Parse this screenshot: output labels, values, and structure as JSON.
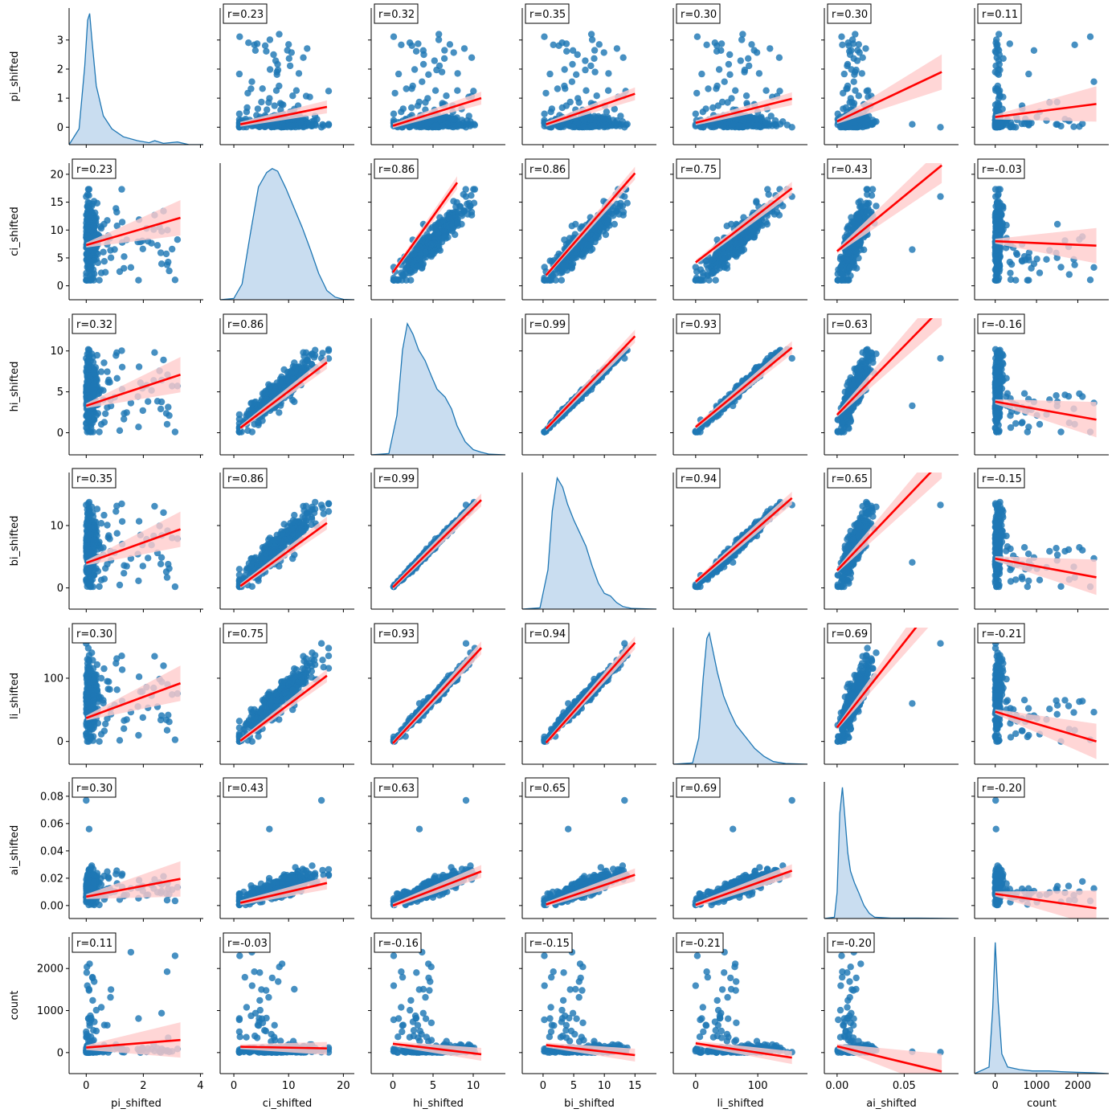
{
  "chart_data": {
    "type": "pairplot",
    "variables": [
      "pi_shifted",
      "ci_shifted",
      "hi_shifted",
      "bi_shifted",
      "li_shifted",
      "ai_shifted",
      "count"
    ],
    "axes": {
      "pi_shifted": {
        "lim": [
          -0.6,
          4.1
        ],
        "ticks": [
          0,
          1,
          2,
          3
        ],
        "xticks": [
          0,
          2,
          4
        ]
      },
      "ci_shifted": {
        "lim": [
          -2.5,
          22.0
        ],
        "ticks": [
          0,
          5,
          10,
          15,
          20,
          25
        ],
        "xticks": [
          0,
          10,
          20
        ]
      },
      "hi_shifted": {
        "lim": [
          -2.7,
          14.0
        ],
        "ticks": [
          0,
          5,
          10,
          15,
          20
        ],
        "xticks": [
          0,
          5,
          10
        ]
      },
      "bi_shifted": {
        "lim": [
          -3.4,
          18.5
        ],
        "ticks": [
          0,
          10,
          20
        ],
        "xticks": [
          0,
          5,
          10,
          15
        ]
      },
      "li_shifted": {
        "lim": [
          -36,
          180
        ],
        "ticks": [
          0,
          100,
          200,
          300
        ],
        "xticks": [
          0,
          100
        ]
      },
      "ai_shifted": {
        "lim": [
          -0.0095,
          0.0905
        ],
        "ticks": [
          0.0,
          0.02,
          0.04,
          0.06,
          0.08
        ],
        "xticks": [
          0.0,
          0.05
        ]
      },
      "count": {
        "lim": [
          -500,
          2750
        ],
        "ticks": [
          -1000,
          0,
          1000,
          2000
        ],
        "xticks": [
          0,
          1000,
          2000
        ]
      }
    },
    "diagonal_kde": {
      "pi_shifted": [
        [
          -0.6,
          0
        ],
        [
          -0.25,
          0.12
        ],
        [
          -0.05,
          0.6
        ],
        [
          0.05,
          0.95
        ],
        [
          0.12,
          1.0
        ],
        [
          0.2,
          0.8
        ],
        [
          0.35,
          0.45
        ],
        [
          0.6,
          0.22
        ],
        [
          0.9,
          0.12
        ],
        [
          1.3,
          0.06
        ],
        [
          1.8,
          0.03
        ],
        [
          2.2,
          0.015
        ],
        [
          2.4,
          0.03
        ],
        [
          2.7,
          0.01
        ],
        [
          3.2,
          0.02
        ],
        [
          3.6,
          0.0
        ],
        [
          4.1,
          0
        ]
      ],
      "ci_shifted": [
        [
          -2.5,
          0
        ],
        [
          0,
          0.01
        ],
        [
          1.5,
          0.12
        ],
        [
          3,
          0.5
        ],
        [
          4.5,
          0.86
        ],
        [
          6,
          0.97
        ],
        [
          7,
          1.0
        ],
        [
          8,
          0.98
        ],
        [
          9.5,
          0.85
        ],
        [
          11,
          0.7
        ],
        [
          12.5,
          0.55
        ],
        [
          14,
          0.38
        ],
        [
          15.5,
          0.2
        ],
        [
          17,
          0.07
        ],
        [
          18.5,
          0.02
        ],
        [
          20,
          0.003
        ],
        [
          22,
          0
        ]
      ],
      "hi_shifted": [
        [
          -2.7,
          0
        ],
        [
          -0.5,
          0.01
        ],
        [
          0.5,
          0.3
        ],
        [
          1.2,
          0.8
        ],
        [
          1.8,
          1.0
        ],
        [
          2.5,
          0.92
        ],
        [
          3.2,
          0.8
        ],
        [
          4,
          0.72
        ],
        [
          4.8,
          0.6
        ],
        [
          5.5,
          0.5
        ],
        [
          6.5,
          0.44
        ],
        [
          7.3,
          0.35
        ],
        [
          8,
          0.22
        ],
        [
          9,
          0.1
        ],
        [
          10,
          0.04
        ],
        [
          11,
          0.02
        ],
        [
          12,
          0.005
        ],
        [
          14,
          0
        ]
      ],
      "bi_shifted": [
        [
          -3.4,
          0
        ],
        [
          -0.5,
          0.01
        ],
        [
          0.8,
          0.3
        ],
        [
          1.5,
          0.75
        ],
        [
          2.3,
          1.0
        ],
        [
          3.2,
          0.93
        ],
        [
          4,
          0.8
        ],
        [
          5,
          0.68
        ],
        [
          6,
          0.58
        ],
        [
          7,
          0.48
        ],
        [
          8,
          0.33
        ],
        [
          9,
          0.2
        ],
        [
          10,
          0.12
        ],
        [
          11,
          0.1
        ],
        [
          12,
          0.05
        ],
        [
          13,
          0.02
        ],
        [
          14.5,
          0.005
        ],
        [
          18.5,
          0
        ]
      ],
      "li_shifted": [
        [
          -36,
          0
        ],
        [
          -5,
          0.01
        ],
        [
          5,
          0.2
        ],
        [
          12,
          0.65
        ],
        [
          18,
          0.96
        ],
        [
          22,
          1.0
        ],
        [
          28,
          0.86
        ],
        [
          35,
          0.7
        ],
        [
          45,
          0.52
        ],
        [
          55,
          0.4
        ],
        [
          65,
          0.3
        ],
        [
          75,
          0.24
        ],
        [
          85,
          0.18
        ],
        [
          95,
          0.12
        ],
        [
          110,
          0.06
        ],
        [
          125,
          0.02
        ],
        [
          145,
          0.005
        ],
        [
          180,
          0
        ]
      ],
      "ai_shifted": [
        [
          -0.0095,
          0
        ],
        [
          -0.002,
          0.01
        ],
        [
          0.0,
          0.2
        ],
        [
          0.002,
          0.8
        ],
        [
          0.004,
          1.0
        ],
        [
          0.006,
          0.75
        ],
        [
          0.008,
          0.5
        ],
        [
          0.01,
          0.36
        ],
        [
          0.013,
          0.27
        ],
        [
          0.016,
          0.2
        ],
        [
          0.02,
          0.1
        ],
        [
          0.024,
          0.04
        ],
        [
          0.028,
          0.01
        ],
        [
          0.04,
          0.003
        ],
        [
          0.055,
          0.003
        ],
        [
          0.07,
          0.002
        ],
        [
          0.09,
          0
        ]
      ],
      "count": [
        [
          -500,
          0
        ],
        [
          -150,
          0.05
        ],
        [
          -60,
          0.5
        ],
        [
          0,
          1.0
        ],
        [
          70,
          0.55
        ],
        [
          160,
          0.15
        ],
        [
          300,
          0.05
        ],
        [
          600,
          0.03
        ],
        [
          900,
          0.02
        ],
        [
          1300,
          0.02
        ],
        [
          1600,
          0.015
        ],
        [
          2000,
          0.01
        ],
        [
          2400,
          0.006
        ],
        [
          2750,
          0
        ]
      ]
    },
    "correlations": [
      [
        null,
        0.23,
        0.32,
        0.35,
        0.3,
        0.3,
        0.11
      ],
      [
        0.23,
        null,
        0.86,
        0.86,
        0.75,
        0.43,
        -0.03
      ],
      [
        0.32,
        0.86,
        null,
        0.99,
        0.93,
        0.63,
        -0.16
      ],
      [
        0.35,
        0.86,
        0.99,
        null,
        0.94,
        0.65,
        -0.15
      ],
      [
        0.3,
        0.75,
        0.93,
        0.94,
        null,
        0.69,
        -0.21
      ],
      [
        0.3,
        0.43,
        0.63,
        0.65,
        0.69,
        null,
        -0.2
      ],
      [
        0.11,
        -0.03,
        -0.16,
        -0.15,
        -0.21,
        -0.2,
        null
      ]
    ],
    "regression_lines": [
      [
        null,
        [
          [
            1.2,
            0.1
          ],
          [
            17,
            0.7
          ]
        ],
        [
          [
            0,
            0.05
          ],
          [
            11,
            1.0
          ]
        ],
        [
          [
            0.5,
            0.1
          ],
          [
            15,
            1.15
          ]
        ],
        [
          [
            0,
            0.15
          ],
          [
            155,
            0.98
          ]
        ],
        [
          [
            0,
            0.2
          ],
          [
            0.078,
            1.9
          ]
        ],
        [
          [
            0,
            0.35
          ],
          [
            2450,
            0.8
          ]
        ]
      ],
      [
        [
          [
            0,
            7.3
          ],
          [
            3.3,
            12.2
          ]
        ],
        null,
        [
          [
            0,
            2.4
          ],
          [
            8,
            18.5
          ]
        ],
        [
          [
            0.5,
            1.9
          ],
          [
            15,
            20.2
          ]
        ],
        [
          [
            0,
            4.2
          ],
          [
            155,
            17.5
          ]
        ],
        [
          [
            0,
            6.2
          ],
          [
            0.078,
            21.6
          ]
        ],
        [
          [
            0,
            8.0
          ],
          [
            2450,
            7.2
          ]
        ]
      ],
      [
        [
          [
            0,
            3.3
          ],
          [
            3.3,
            7.1
          ]
        ],
        [
          [
            1.2,
            0.6
          ],
          [
            17,
            8.6
          ]
        ],
        null,
        [
          [
            0.5,
            0.5
          ],
          [
            15,
            11.8
          ]
        ],
        [
          [
            0,
            0.7
          ],
          [
            155,
            10.4
          ]
        ],
        [
          [
            0,
            2.2
          ],
          [
            0.078,
            15.3
          ]
        ],
        [
          [
            0,
            3.8
          ],
          [
            2450,
            1.6
          ]
        ]
      ],
      [
        [
          [
            0,
            4.0
          ],
          [
            3.3,
            9.4
          ]
        ],
        [
          [
            1.2,
            0.3
          ],
          [
            17,
            10.4
          ]
        ],
        [
          [
            0,
            0.1
          ],
          [
            11,
            14.1
          ]
        ],
        null,
        [
          [
            0,
            1.0
          ],
          [
            155,
            14.4
          ]
        ],
        [
          [
            0,
            2.8
          ],
          [
            0.078,
            20.4
          ]
        ],
        [
          [
            0,
            4.7
          ],
          [
            2450,
            1.7
          ]
        ]
      ],
      [
        [
          [
            0,
            37
          ],
          [
            3.3,
            92
          ]
        ],
        [
          [
            1.2,
            1
          ],
          [
            17,
            104
          ]
        ],
        [
          [
            0,
            -3
          ],
          [
            11,
            148
          ]
        ],
        [
          [
            0.5,
            -2
          ],
          [
            15,
            156
          ]
        ],
        null,
        [
          [
            0,
            22
          ],
          [
            0.078,
            232
          ]
        ],
        [
          [
            0,
            47
          ],
          [
            2450,
            0
          ]
        ]
      ],
      [
        [
          [
            0,
            0.0065
          ],
          [
            3.3,
            0.0195
          ]
        ],
        [
          [
            1.2,
            0.002
          ],
          [
            17,
            0.0165
          ]
        ],
        [
          [
            0,
            0.0
          ],
          [
            11,
            0.025
          ]
        ],
        [
          [
            0.5,
            0.0008
          ],
          [
            15,
            0.0225
          ]
        ],
        [
          [
            0,
            0.0005
          ],
          [
            155,
            0.0255
          ]
        ],
        null,
        [
          [
            0,
            0.0085
          ],
          [
            2450,
            -0.002
          ]
        ]
      ],
      [
        [
          [
            0,
            120
          ],
          [
            3.3,
            300
          ]
        ],
        [
          [
            1.2,
            140
          ],
          [
            17,
            100
          ]
        ],
        [
          [
            0,
            210
          ],
          [
            11,
            -40
          ]
        ],
        [
          [
            0.5,
            180
          ],
          [
            15,
            -60
          ]
        ],
        [
          [
            0,
            220
          ],
          [
            155,
            -120
          ]
        ],
        [
          [
            0,
            150
          ],
          [
            0.078,
            -450
          ]
        ],
        null
      ]
    ],
    "series_colors": {
      "points": "#1f77b4",
      "regression": "#ff0000",
      "ci_band": "#ffcccc",
      "kde_fill": "#c6dbef"
    }
  }
}
